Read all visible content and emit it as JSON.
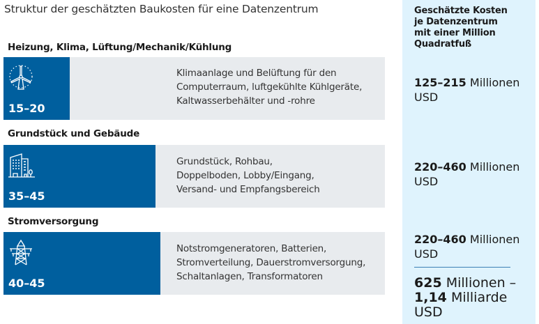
{
  "title": "Struktur der geschätzten Baukosten für eine Datenzentrum",
  "colors": {
    "bar": "#005f9e",
    "row_bg": "#e8ebee",
    "panel_bg": "#dff3fd"
  },
  "sections": [
    {
      "heading": "Heizung, Klima, Lüftung/Mechanik/Kühlung",
      "icon": "wind-turbine-icon",
      "range": "15–20",
      "percent_mid": 17.5,
      "desc": [
        "Klimaanlage und Belüftung für den",
        "Computerraum, luftgekühlte Kühlgeräte,",
        "Kaltwasserbehälter und -rohre"
      ],
      "cost_bold": "125–215",
      "cost_rest": "Millionen",
      "cost_unit": "USD"
    },
    {
      "heading": "Grundstück und Gebäude",
      "icon": "building-icon",
      "range": "35–45",
      "percent_mid": 40,
      "desc": [
        "Grundstück, Rohbau,",
        "Doppelboden, Lobby/Eingang,",
        "Versand- und Empfangsbereich"
      ],
      "cost_bold": "220–460",
      "cost_rest": "Millionen",
      "cost_unit": "USD"
    },
    {
      "heading": "Stromversorgung",
      "icon": "power-tower-icon",
      "range": "40–45",
      "percent_mid": 42.5,
      "desc": [
        "Notstromgeneratoren, Batterien,",
        "Stromverteilung, Dauerstromversorgung,",
        "Schaltanlagen, Transformatoren"
      ],
      "cost_bold": "220–460",
      "cost_rest": "Millionen",
      "cost_unit": "USD"
    }
  ],
  "panel": {
    "heading": [
      "Geschätzte Kosten",
      "je Datenzentrum",
      "mit einer Million",
      "Quadratfuß"
    ],
    "total": {
      "bold1": "625",
      "rest1": "Millionen –",
      "bold2": "1,14",
      "rest2": "Milliarde",
      "unit": "USD"
    }
  }
}
